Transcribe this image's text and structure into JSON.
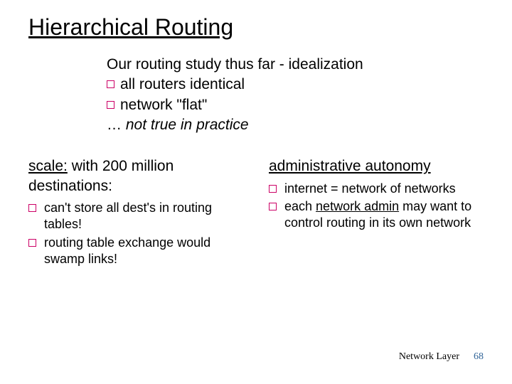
{
  "title": "Hierarchical Routing",
  "intro": {
    "line1": "Our routing study thus far - idealization",
    "bullet1": "all routers identical",
    "bullet2": "network \"flat\"",
    "line4_prefix": "… ",
    "line4_italic": "not true in practice"
  },
  "left": {
    "heading_before": "scale:",
    "heading_rest": " with 200 million destinations:",
    "items": [
      "can't store all dest's in routing tables!",
      "routing table exchange would swamp links!"
    ]
  },
  "right": {
    "heading": "administrative autonomy",
    "items_html": [
      "internet = network of networks",
      "each <span class=\"ul-word\">network admin</span> may want to control routing in its own network"
    ]
  },
  "footer": {
    "label": "Network Layer",
    "page": "68"
  },
  "colors": {
    "bullet_border": "#cc0066",
    "page_num": "#336699"
  }
}
